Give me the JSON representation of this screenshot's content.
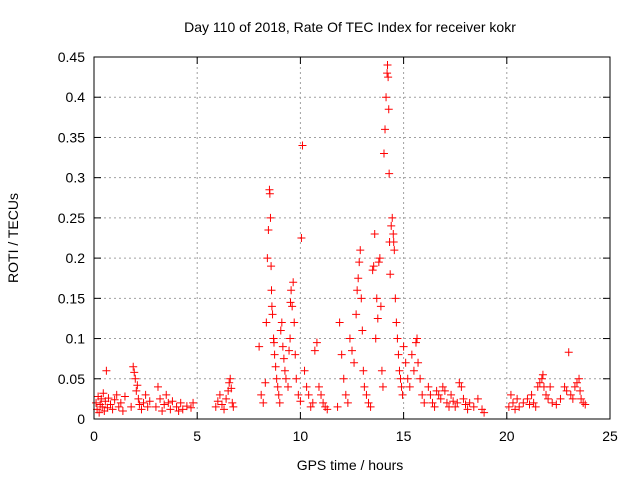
{
  "chart_data": {
    "type": "scatter",
    "title": "Day 110 of 2018, Rate Of TEC Index for receiver kokr",
    "xlabel": "GPS time / hours",
    "ylabel": "ROTI / TECUs",
    "xlim": [
      0,
      25
    ],
    "ylim": [
      0,
      0.45
    ],
    "grid": true,
    "marker": "+",
    "marker_color": "#ff0000",
    "x_ticks": [
      0,
      5,
      10,
      15,
      20,
      25
    ],
    "x_tick_labels": [
      "0",
      "5",
      "10",
      "15",
      "20",
      "25"
    ],
    "y_ticks": [
      0,
      0.05,
      0.1,
      0.15,
      0.2,
      0.25,
      0.3,
      0.35,
      0.4,
      0.45
    ],
    "y_tick_labels": [
      "0",
      "0.05",
      "0.1",
      "0.15",
      "0.2",
      "0.25",
      "0.3",
      "0.35",
      "0.4",
      "0.45"
    ],
    "series": [
      {
        "name": "kokr",
        "points": [
          [
            0.1,
            0.02
          ],
          [
            0.15,
            0.012
          ],
          [
            0.2,
            0.028
          ],
          [
            0.25,
            0.008
          ],
          [
            0.3,
            0.018
          ],
          [
            0.35,
            0.025
          ],
          [
            0.4,
            0.015
          ],
          [
            0.45,
            0.032
          ],
          [
            0.5,
            0.01
          ],
          [
            0.55,
            0.022
          ],
          [
            0.6,
            0.06
          ],
          [
            0.65,
            0.014
          ],
          [
            0.7,
            0.026
          ],
          [
            0.8,
            0.018
          ],
          [
            0.9,
            0.012
          ],
          [
            1.0,
            0.024
          ],
          [
            1.1,
            0.03
          ],
          [
            1.2,
            0.015
          ],
          [
            1.3,
            0.02
          ],
          [
            1.4,
            0.01
          ],
          [
            1.5,
            0.028
          ],
          [
            1.8,
            0.015
          ],
          [
            1.9,
            0.065
          ],
          [
            1.95,
            0.058
          ],
          [
            2.0,
            0.05
          ],
          [
            2.05,
            0.035
          ],
          [
            2.1,
            0.042
          ],
          [
            2.15,
            0.025
          ],
          [
            2.2,
            0.018
          ],
          [
            2.3,
            0.012
          ],
          [
            2.4,
            0.02
          ],
          [
            2.5,
            0.03
          ],
          [
            2.6,
            0.015
          ],
          [
            2.7,
            0.022
          ],
          [
            3.0,
            0.015
          ],
          [
            3.1,
            0.04
          ],
          [
            3.2,
            0.025
          ],
          [
            3.3,
            0.01
          ],
          [
            3.4,
            0.018
          ],
          [
            3.5,
            0.03
          ],
          [
            3.6,
            0.02
          ],
          [
            3.7,
            0.012
          ],
          [
            3.8,
            0.022
          ],
          [
            4.0,
            0.015
          ],
          [
            4.1,
            0.01
          ],
          [
            4.2,
            0.02
          ],
          [
            4.3,
            0.012
          ],
          [
            4.5,
            0.016
          ],
          [
            4.7,
            0.014
          ],
          [
            4.8,
            0.02
          ],
          [
            5.9,
            0.015
          ],
          [
            6.0,
            0.022
          ],
          [
            6.1,
            0.03
          ],
          [
            6.2,
            0.018
          ],
          [
            6.3,
            0.012
          ],
          [
            6.4,
            0.025
          ],
          [
            6.5,
            0.035
          ],
          [
            6.55,
            0.045
          ],
          [
            6.6,
            0.05
          ],
          [
            6.65,
            0.038
          ],
          [
            6.7,
            0.02
          ],
          [
            6.75,
            0.015
          ],
          [
            8.0,
            0.09
          ],
          [
            8.1,
            0.03
          ],
          [
            8.2,
            0.02
          ],
          [
            8.3,
            0.045
          ],
          [
            8.35,
            0.12
          ],
          [
            8.4,
            0.2
          ],
          [
            8.45,
            0.235
          ],
          [
            8.5,
            0.285
          ],
          [
            8.52,
            0.28
          ],
          [
            8.55,
            0.25
          ],
          [
            8.58,
            0.19
          ],
          [
            8.6,
            0.16
          ],
          [
            8.62,
            0.14
          ],
          [
            8.65,
            0.13
          ],
          [
            8.7,
            0.1
          ],
          [
            8.72,
            0.095
          ],
          [
            8.75,
            0.08
          ],
          [
            8.8,
            0.065
          ],
          [
            8.85,
            0.05
          ],
          [
            8.9,
            0.04
          ],
          [
            8.95,
            0.03
          ],
          [
            9.0,
            0.02
          ],
          [
            9.05,
            0.11
          ],
          [
            9.1,
            0.12
          ],
          [
            9.15,
            0.09
          ],
          [
            9.2,
            0.075
          ],
          [
            9.25,
            0.06
          ],
          [
            9.3,
            0.05
          ],
          [
            9.4,
            0.04
          ],
          [
            9.45,
            0.085
          ],
          [
            9.5,
            0.1
          ],
          [
            9.52,
            0.145
          ],
          [
            9.55,
            0.16
          ],
          [
            9.6,
            0.14
          ],
          [
            9.65,
            0.17
          ],
          [
            9.7,
            0.12
          ],
          [
            9.75,
            0.08
          ],
          [
            9.8,
            0.05
          ],
          [
            9.9,
            0.03
          ],
          [
            10.0,
            0.022
          ],
          [
            10.05,
            0.225
          ],
          [
            10.1,
            0.34
          ],
          [
            10.2,
            0.06
          ],
          [
            10.3,
            0.04
          ],
          [
            10.4,
            0.03
          ],
          [
            10.5,
            0.015
          ],
          [
            10.6,
            0.02
          ],
          [
            10.7,
            0.085
          ],
          [
            10.8,
            0.095
          ],
          [
            10.9,
            0.04
          ],
          [
            11.0,
            0.03
          ],
          [
            11.1,
            0.02
          ],
          [
            11.2,
            0.015
          ],
          [
            11.3,
            0.012
          ],
          [
            11.8,
            0.015
          ],
          [
            11.9,
            0.12
          ],
          [
            12.0,
            0.08
          ],
          [
            12.1,
            0.05
          ],
          [
            12.2,
            0.03
          ],
          [
            12.3,
            0.02
          ],
          [
            12.4,
            0.1
          ],
          [
            12.5,
            0.085
          ],
          [
            12.6,
            0.07
          ],
          [
            12.7,
            0.13
          ],
          [
            12.75,
            0.16
          ],
          [
            12.8,
            0.175
          ],
          [
            12.85,
            0.195
          ],
          [
            12.9,
            0.21
          ],
          [
            12.95,
            0.15
          ],
          [
            13.0,
            0.11
          ],
          [
            13.05,
            0.06
          ],
          [
            13.1,
            0.04
          ],
          [
            13.2,
            0.03
          ],
          [
            13.3,
            0.02
          ],
          [
            13.4,
            0.015
          ],
          [
            13.5,
            0.185
          ],
          [
            13.55,
            0.19
          ],
          [
            13.6,
            0.23
          ],
          [
            13.65,
            0.1
          ],
          [
            13.7,
            0.15
          ],
          [
            13.75,
            0.125
          ],
          [
            13.8,
            0.195
          ],
          [
            13.85,
            0.2
          ],
          [
            13.9,
            0.14
          ],
          [
            13.95,
            0.06
          ],
          [
            14.0,
            0.04
          ],
          [
            14.05,
            0.33
          ],
          [
            14.1,
            0.36
          ],
          [
            14.15,
            0.4
          ],
          [
            14.2,
            0.43
          ],
          [
            14.22,
            0.44
          ],
          [
            14.25,
            0.425
          ],
          [
            14.28,
            0.385
          ],
          [
            14.3,
            0.305
          ],
          [
            14.32,
            0.22
          ],
          [
            14.35,
            0.18
          ],
          [
            14.4,
            0.24
          ],
          [
            14.45,
            0.25
          ],
          [
            14.5,
            0.23
          ],
          [
            14.52,
            0.22
          ],
          [
            14.55,
            0.21
          ],
          [
            14.6,
            0.15
          ],
          [
            14.65,
            0.12
          ],
          [
            14.7,
            0.1
          ],
          [
            14.75,
            0.08
          ],
          [
            14.8,
            0.06
          ],
          [
            14.85,
            0.05
          ],
          [
            14.9,
            0.04
          ],
          [
            14.95,
            0.03
          ],
          [
            15.0,
            0.09
          ],
          [
            15.1,
            0.07
          ],
          [
            15.2,
            0.05
          ],
          [
            15.3,
            0.04
          ],
          [
            15.4,
            0.08
          ],
          [
            15.5,
            0.06
          ],
          [
            15.6,
            0.095
          ],
          [
            15.65,
            0.1
          ],
          [
            15.7,
            0.07
          ],
          [
            15.8,
            0.05
          ],
          [
            15.9,
            0.03
          ],
          [
            16.0,
            0.02
          ],
          [
            16.2,
            0.04
          ],
          [
            16.3,
            0.03
          ],
          [
            16.4,
            0.02
          ],
          [
            16.5,
            0.015
          ],
          [
            16.6,
            0.035
          ],
          [
            16.7,
            0.03
          ],
          [
            16.8,
            0.025
          ],
          [
            16.9,
            0.04
          ],
          [
            17.0,
            0.035
          ],
          [
            17.1,
            0.02
          ],
          [
            17.2,
            0.015
          ],
          [
            17.3,
            0.03
          ],
          [
            17.4,
            0.022
          ],
          [
            17.5,
            0.015
          ],
          [
            17.6,
            0.02
          ],
          [
            17.7,
            0.045
          ],
          [
            17.8,
            0.04
          ],
          [
            17.9,
            0.025
          ],
          [
            18.0,
            0.018
          ],
          [
            18.1,
            0.012
          ],
          [
            18.2,
            0.02
          ],
          [
            18.4,
            0.015
          ],
          [
            18.6,
            0.025
          ],
          [
            18.8,
            0.012
          ],
          [
            18.9,
            0.008
          ],
          [
            20.1,
            0.015
          ],
          [
            20.2,
            0.03
          ],
          [
            20.3,
            0.02
          ],
          [
            20.4,
            0.012
          ],
          [
            20.5,
            0.025
          ],
          [
            20.6,
            0.015
          ],
          [
            20.8,
            0.02
          ],
          [
            21.0,
            0.025
          ],
          [
            21.1,
            0.018
          ],
          [
            21.2,
            0.03
          ],
          [
            21.3,
            0.02
          ],
          [
            21.4,
            0.015
          ],
          [
            21.5,
            0.04
          ],
          [
            21.6,
            0.045
          ],
          [
            21.7,
            0.05
          ],
          [
            21.75,
            0.055
          ],
          [
            21.8,
            0.04
          ],
          [
            21.9,
            0.03
          ],
          [
            22.0,
            0.025
          ],
          [
            22.1,
            0.04
          ],
          [
            22.2,
            0.02
          ],
          [
            22.4,
            0.018
          ],
          [
            22.6,
            0.025
          ],
          [
            22.8,
            0.04
          ],
          [
            22.9,
            0.035
          ],
          [
            23.0,
            0.083
          ],
          [
            23.1,
            0.03
          ],
          [
            23.2,
            0.025
          ],
          [
            23.3,
            0.04
          ],
          [
            23.4,
            0.045
          ],
          [
            23.5,
            0.05
          ],
          [
            23.55,
            0.035
          ],
          [
            23.6,
            0.025
          ],
          [
            23.7,
            0.02
          ],
          [
            23.8,
            0.018
          ]
        ]
      }
    ]
  }
}
